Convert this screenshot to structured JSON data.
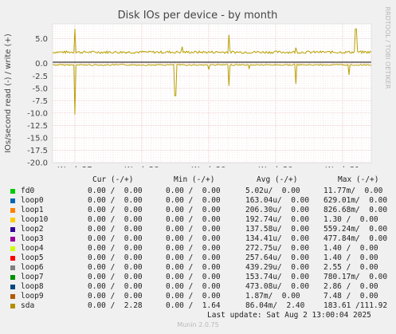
{
  "chart_data": {
    "type": "line",
    "title": "Disk IOs per device - by month",
    "ylabel": "IOs/second read (-) / write (+)",
    "ylim": [
      -20,
      8
    ],
    "y_ticks": [
      "5.0",
      "0.0",
      "-2.5",
      "-5.0",
      "-7.5",
      "-10.0",
      "-12.5",
      "-15.0",
      "-17.5",
      "-20.0"
    ],
    "y_tick_values": [
      5,
      0,
      -2.5,
      -5,
      -7.5,
      -10,
      -12.5,
      -15,
      -17.5,
      -20
    ],
    "x_ticks": [
      "Week 27",
      "Week 28",
      "Week 29",
      "Week 30",
      "Week 31"
    ],
    "grid": true,
    "series": [
      {
        "name": "sda",
        "color": "#b8a000",
        "write_baseline": 2.3,
        "read_baseline": -0.15,
        "write_spikes": [
          {
            "week": 27.0,
            "value": 7.0
          },
          {
            "week": 29.3,
            "value": 5.8
          },
          {
            "week": 31.2,
            "value": 7.0
          },
          {
            "week": 28.6,
            "value": 3.4
          },
          {
            "week": 30.3,
            "value": 3.2
          }
        ],
        "read_spikes": [
          {
            "week": 27.0,
            "value": -10.3
          },
          {
            "week": 28.5,
            "value": -6.5
          },
          {
            "week": 29.3,
            "value": -4.5
          },
          {
            "week": 30.3,
            "value": -4.1
          },
          {
            "week": 31.1,
            "value": -2.3
          },
          {
            "week": 29.0,
            "value": -1.2
          },
          {
            "week": 29.6,
            "value": -1.0
          }
        ]
      }
    ]
  },
  "side_label": "RRDTOOL / TOBI OETIKER",
  "legend": {
    "headers": {
      "cur": "Cur (-/+)",
      "min": "Min (-/+)",
      "avg": "Avg (-/+)",
      "max": "Max (-/+)"
    },
    "rows": [
      {
        "name": "fd0",
        "color": "#00cc00",
        "cur": "0.00 /  0.00",
        "min": "0.00 /  0.00",
        "avg": "5.02u/  0.00",
        "max": "11.77m/  0.00"
      },
      {
        "name": "loop0",
        "color": "#0066b3",
        "cur": "0.00 /  0.00",
        "min": "0.00 /  0.00",
        "avg": "163.04u/  0.00",
        "max": "629.01m/  0.00"
      },
      {
        "name": "loop1",
        "color": "#ff8000",
        "cur": "0.00 /  0.00",
        "min": "0.00 /  0.00",
        "avg": "206.30u/  0.00",
        "max": "826.68m/  0.00"
      },
      {
        "name": "loop10",
        "color": "#ffcc00",
        "cur": "0.00 /  0.00",
        "min": "0.00 /  0.00",
        "avg": "192.74u/  0.00",
        "max": "1.30 /  0.00"
      },
      {
        "name": "loop2",
        "color": "#330099",
        "cur": "0.00 /  0.00",
        "min": "0.00 /  0.00",
        "avg": "137.58u/  0.00",
        "max": "559.24m/  0.00"
      },
      {
        "name": "loop3",
        "color": "#990099",
        "cur": "0.00 /  0.00",
        "min": "0.00 /  0.00",
        "avg": "134.41u/  0.00",
        "max": "477.84m/  0.00"
      },
      {
        "name": "loop4",
        "color": "#ccff00",
        "cur": "0.00 /  0.00",
        "min": "0.00 /  0.00",
        "avg": "272.75u/  0.00",
        "max": "1.40 /  0.00"
      },
      {
        "name": "loop5",
        "color": "#ff0000",
        "cur": "0.00 /  0.00",
        "min": "0.00 /  0.00",
        "avg": "257.64u/  0.00",
        "max": "1.40 /  0.00"
      },
      {
        "name": "loop6",
        "color": "#808080",
        "cur": "0.00 /  0.00",
        "min": "0.00 /  0.00",
        "avg": "439.29u/  0.00",
        "max": "2.55 /  0.00"
      },
      {
        "name": "loop7",
        "color": "#008f00",
        "cur": "0.00 /  0.00",
        "min": "0.00 /  0.00",
        "avg": "153.74u/  0.00",
        "max": "780.17m/  0.00"
      },
      {
        "name": "loop8",
        "color": "#00487d",
        "cur": "0.00 /  0.00",
        "min": "0.00 /  0.00",
        "avg": "473.08u/  0.00",
        "max": "2.86 /  0.00"
      },
      {
        "name": "loop9",
        "color": "#b35a00",
        "cur": "0.00 /  0.00",
        "min": "0.00 /  0.00",
        "avg": "1.87m/  0.00",
        "max": "7.48 /  0.00"
      },
      {
        "name": "sda",
        "color": "#b38f00",
        "cur": "0.00 /  2.28",
        "min": "0.00 /  1.64",
        "avg": "86.04m/  2.40",
        "max": "183.61 /111.92"
      }
    ]
  },
  "last_update": "Last update: Sat Aug  2 13:00:04 2025",
  "footer": "Munin 2.0.75"
}
